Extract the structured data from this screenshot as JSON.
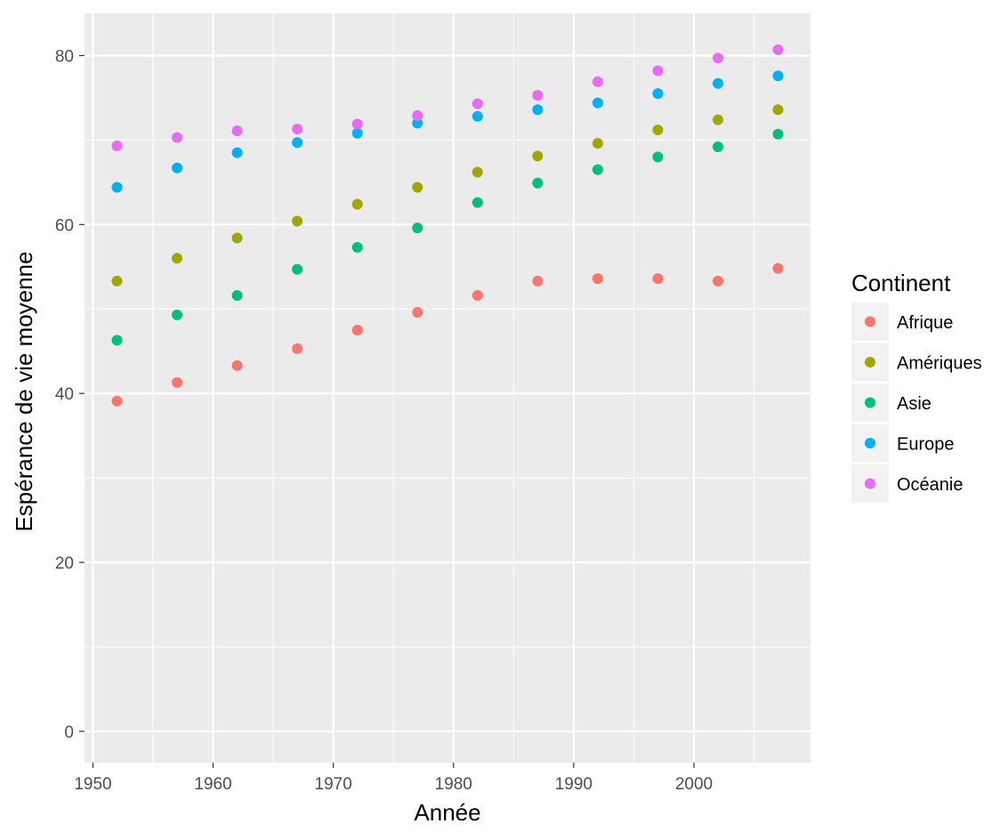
{
  "chart_data": {
    "type": "scatter",
    "title": "",
    "xlabel": "Année",
    "ylabel": "Espérance de vie moyenne",
    "xlim": [
      1949.3,
      2009.7
    ],
    "ylim": [
      -3.7,
      85
    ],
    "x_ticks": [
      1950,
      1960,
      1970,
      1980,
      1990,
      2000
    ],
    "y_ticks": [
      0,
      20,
      40,
      60,
      80
    ],
    "grid": true,
    "legend": {
      "title": "Continent",
      "position": "right"
    },
    "x": [
      1952,
      1957,
      1962,
      1967,
      1972,
      1977,
      1982,
      1987,
      1992,
      1997,
      2002,
      2007
    ],
    "series": [
      {
        "name": "Afrique",
        "color": "#F8766D",
        "values": [
          39.1,
          41.3,
          43.3,
          45.3,
          47.5,
          49.6,
          51.6,
          53.3,
          53.6,
          53.6,
          53.3,
          54.8
        ]
      },
      {
        "name": "Amériques",
        "color": "#A3A500",
        "values": [
          53.3,
          56.0,
          58.4,
          60.4,
          62.4,
          64.4,
          66.2,
          68.1,
          69.6,
          71.2,
          72.4,
          73.6
        ]
      },
      {
        "name": "Asie",
        "color": "#00BF7D",
        "values": [
          46.3,
          49.3,
          51.6,
          54.7,
          57.3,
          59.6,
          62.6,
          64.9,
          66.5,
          68.0,
          69.2,
          70.7
        ]
      },
      {
        "name": "Europe",
        "color": "#00B0F6",
        "values": [
          64.4,
          66.7,
          68.5,
          69.7,
          70.8,
          72.0,
          72.8,
          73.6,
          74.4,
          75.5,
          76.7,
          77.6
        ]
      },
      {
        "name": "Océanie",
        "color": "#E76BF3",
        "values": [
          69.3,
          70.3,
          71.1,
          71.3,
          71.9,
          72.9,
          74.3,
          75.3,
          76.9,
          78.2,
          79.7,
          80.7
        ]
      }
    ]
  }
}
